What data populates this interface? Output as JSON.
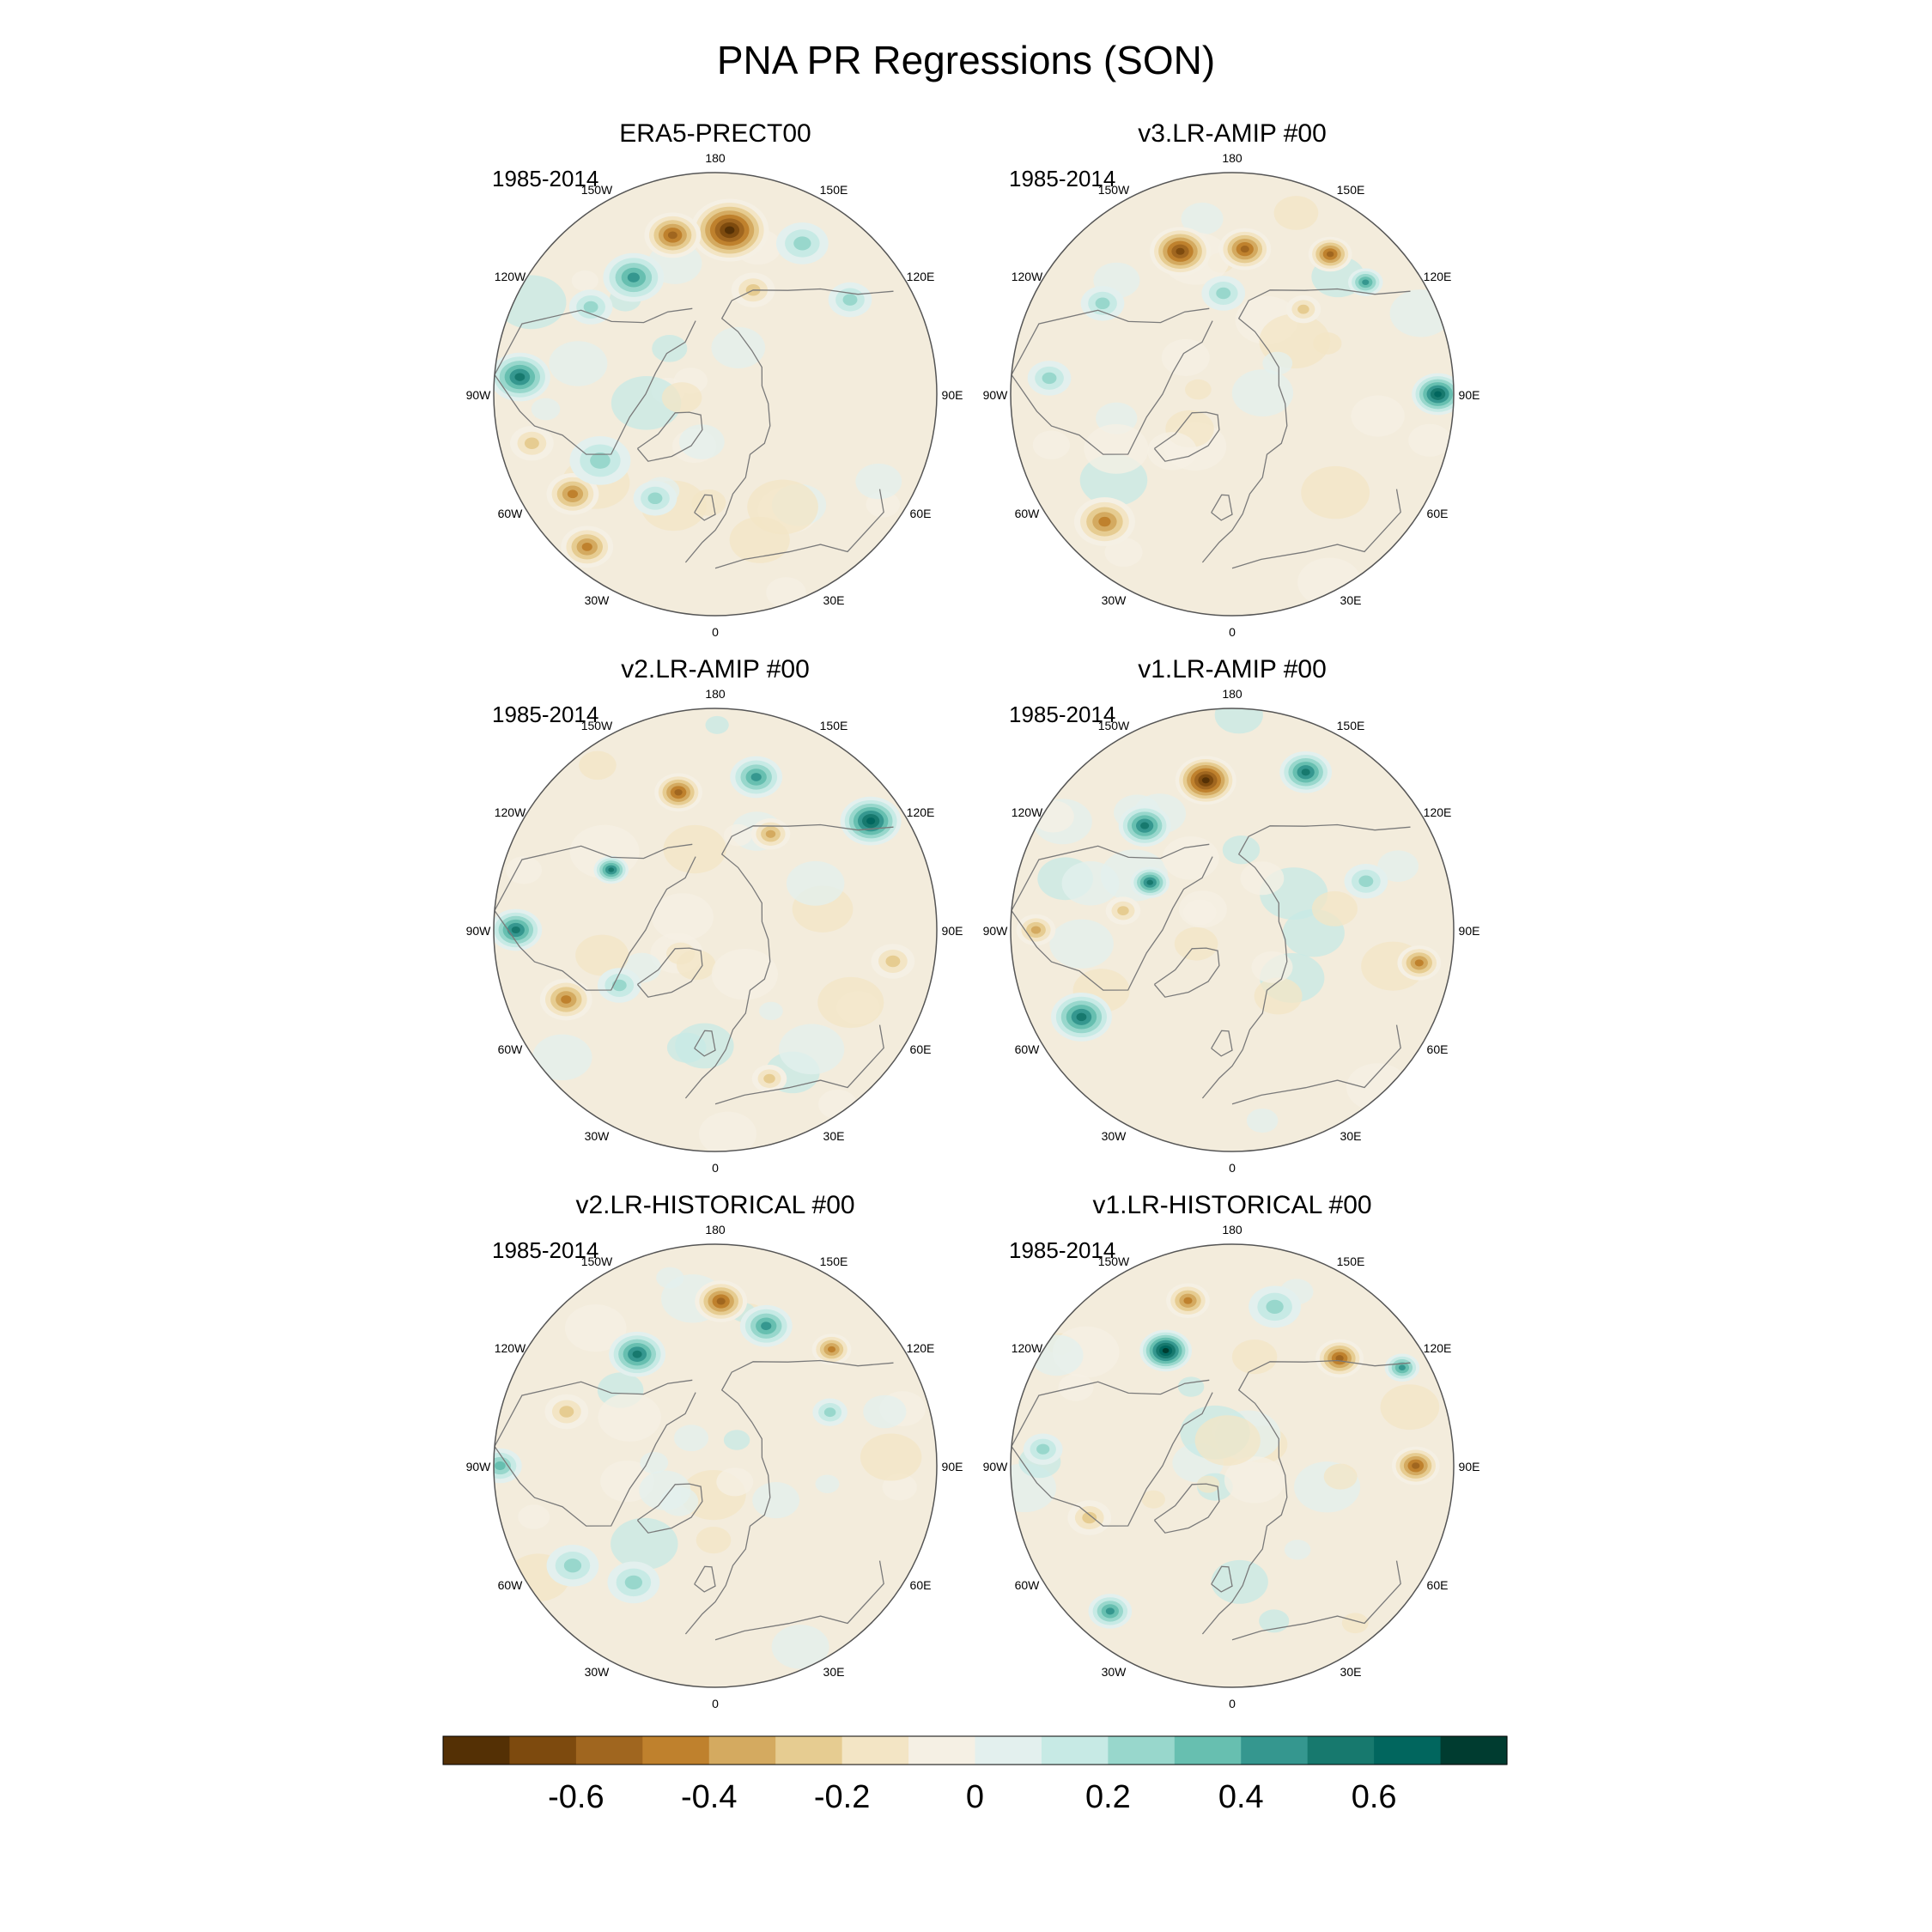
{
  "chart_data": {
    "type": "heatmap",
    "projection": "north-polar-stereographic",
    "title": "PNA PR Regressions (SON)",
    "panels": [
      {
        "name": "ERA5-PRECT00",
        "period": "1985-2014",
        "features": [
          {
            "lon": 175,
            "lat": 38,
            "r": 18,
            "v": -0.8
          },
          {
            "lon": -165,
            "lat": 38,
            "r": 13,
            "v": -0.6
          },
          {
            "lon": -145,
            "lat": 45,
            "r": 14,
            "v": 0.45
          },
          {
            "lon": -125,
            "lat": 42,
            "r": 10,
            "v": 0.35
          },
          {
            "lon": -95,
            "lat": 28,
            "r": 14,
            "v": 0.6
          },
          {
            "lon": -75,
            "lat": 30,
            "r": 10,
            "v": -0.3
          },
          {
            "lon": -55,
            "lat": 35,
            "r": 12,
            "v": -0.45
          },
          {
            "lon": -40,
            "lat": 27,
            "r": 12,
            "v": -0.5
          },
          {
            "lon": -60,
            "lat": 48,
            "r": 14,
            "v": 0.35
          },
          {
            "lon": -30,
            "lat": 52,
            "r": 10,
            "v": 0.25
          },
          {
            "lon": 150,
            "lat": 35,
            "r": 12,
            "v": 0.25
          },
          {
            "lon": 125,
            "lat": 38,
            "r": 10,
            "v": 0.3
          },
          {
            "lon": 160,
            "lat": 55,
            "r": 10,
            "v": -0.3
          }
        ]
      },
      {
        "name": "v3.LR-AMIP  #00",
        "period": "1985-2014",
        "features": [
          {
            "lon": -160,
            "lat": 42,
            "r": 14,
            "v": -0.65
          },
          {
            "lon": 175,
            "lat": 44,
            "r": 12,
            "v": -0.55
          },
          {
            "lon": 145,
            "lat": 36,
            "r": 10,
            "v": -0.6
          },
          {
            "lon": 130,
            "lat": 35,
            "r": 8,
            "v": 0.5
          },
          {
            "lon": -125,
            "lat": 40,
            "r": 10,
            "v": 0.35
          },
          {
            "lon": -175,
            "lat": 58,
            "r": 10,
            "v": 0.3
          },
          {
            "lon": 90,
            "lat": 25,
            "r": 12,
            "v": 0.65
          },
          {
            "lon": -45,
            "lat": 33,
            "r": 14,
            "v": -0.45
          },
          {
            "lon": -95,
            "lat": 32,
            "r": 10,
            "v": 0.3
          },
          {
            "lon": 140,
            "lat": 55,
            "r": 8,
            "v": -0.3
          }
        ]
      },
      {
        "name": "v2.LR-AMIP  #00",
        "period": "1985-2014",
        "features": [
          {
            "lon": -165,
            "lat": 45,
            "r": 11,
            "v": -0.6
          },
          {
            "lon": 165,
            "lat": 40,
            "r": 12,
            "v": 0.45
          },
          {
            "lon": 125,
            "lat": 30,
            "r": 14,
            "v": 0.65
          },
          {
            "lon": -90,
            "lat": 27,
            "r": 12,
            "v": 0.55
          },
          {
            "lon": -65,
            "lat": 38,
            "r": 12,
            "v": -0.45
          },
          {
            "lon": -120,
            "lat": 52,
            "r": 8,
            "v": 0.6
          },
          {
            "lon": 150,
            "lat": 55,
            "r": 9,
            "v": -0.4
          },
          {
            "lon": 80,
            "lat": 33,
            "r": 10,
            "v": -0.3
          },
          {
            "lon": 20,
            "lat": 40,
            "r": 8,
            "v": -0.3
          },
          {
            "lon": -60,
            "lat": 55,
            "r": 10,
            "v": 0.25
          }
        ]
      },
      {
        "name": "v1.LR-AMIP  #00",
        "period": "1985-2014",
        "features": [
          {
            "lon": -170,
            "lat": 42,
            "r": 14,
            "v": -0.75
          },
          {
            "lon": 155,
            "lat": 35,
            "r": 12,
            "v": 0.6
          },
          {
            "lon": -140,
            "lat": 47,
            "r": 12,
            "v": 0.6
          },
          {
            "lon": -60,
            "lat": 35,
            "r": 14,
            "v": 0.55
          },
          {
            "lon": -90,
            "lat": 28,
            "r": 9,
            "v": -0.4
          },
          {
            "lon": 80,
            "lat": 30,
            "r": 10,
            "v": -0.5
          },
          {
            "lon": -120,
            "lat": 60,
            "r": 9,
            "v": 0.55
          },
          {
            "lon": -100,
            "lat": 55,
            "r": 8,
            "v": -0.35
          },
          {
            "lon": 110,
            "lat": 45,
            "r": 10,
            "v": 0.3
          }
        ]
      },
      {
        "name": "v2.LR-HISTORICAL  #00",
        "period": "1985-2014",
        "features": [
          {
            "lon": 178,
            "lat": 38,
            "r": 12,
            "v": -0.6
          },
          {
            "lon": -145,
            "lat": 47,
            "r": 13,
            "v": 0.6
          },
          {
            "lon": 160,
            "lat": 43,
            "r": 12,
            "v": 0.5
          },
          {
            "lon": 135,
            "lat": 38,
            "r": 9,
            "v": -0.45
          },
          {
            "lon": -110,
            "lat": 40,
            "r": 10,
            "v": -0.25
          },
          {
            "lon": -55,
            "lat": 35,
            "r": 12,
            "v": 0.35
          },
          {
            "lon": -90,
            "lat": 22,
            "r": 10,
            "v": 0.4
          },
          {
            "lon": -35,
            "lat": 45,
            "r": 12,
            "v": 0.3
          },
          {
            "lon": 115,
            "lat": 50,
            "r": 8,
            "v": 0.35
          }
        ]
      },
      {
        "name": "v1.LR-HISTORICAL  #00",
        "period": "1985-2014",
        "features": [
          {
            "lon": -150,
            "lat": 48,
            "r": 12,
            "v": 0.75
          },
          {
            "lon": -165,
            "lat": 36,
            "r": 10,
            "v": -0.5
          },
          {
            "lon": 135,
            "lat": 42,
            "r": 11,
            "v": -0.6
          },
          {
            "lon": 165,
            "lat": 38,
            "r": 12,
            "v": 0.35
          },
          {
            "lon": 90,
            "lat": 32,
            "r": 11,
            "v": -0.6
          },
          {
            "lon": -40,
            "lat": 30,
            "r": 10,
            "v": 0.45
          },
          {
            "lon": -70,
            "lat": 42,
            "r": 10,
            "v": -0.35
          },
          {
            "lon": -95,
            "lat": 30,
            "r": 9,
            "v": 0.3
          },
          {
            "lon": 120,
            "lat": 28,
            "r": 8,
            "v": 0.5
          }
        ]
      }
    ],
    "lon_labels": [
      "180",
      "150E",
      "120E",
      "90E",
      "60E",
      "30E",
      "0",
      "30W",
      "60W",
      "90W",
      "120W",
      "150W"
    ],
    "colorbar": {
      "levels": [
        -0.7,
        -0.6,
        -0.5,
        -0.4,
        -0.3,
        -0.2,
        -0.1,
        0,
        0.1,
        0.2,
        0.3,
        0.4,
        0.5,
        0.6,
        0.7
      ],
      "tick_labels": [
        "-0.6",
        "-0.4",
        "-0.2",
        "0",
        "0.2",
        "0.4",
        "0.6"
      ],
      "colors": [
        "#543005",
        "#7d4a0e",
        "#a0661f",
        "#bf812d",
        "#d4aa60",
        "#e6cc91",
        "#f3e5c5",
        "#f5f0e4",
        "#e3f0ee",
        "#c7eae5",
        "#98d7cc",
        "#67bfb0",
        "#35978f",
        "#17796e",
        "#01665e",
        "#003c30"
      ]
    }
  }
}
